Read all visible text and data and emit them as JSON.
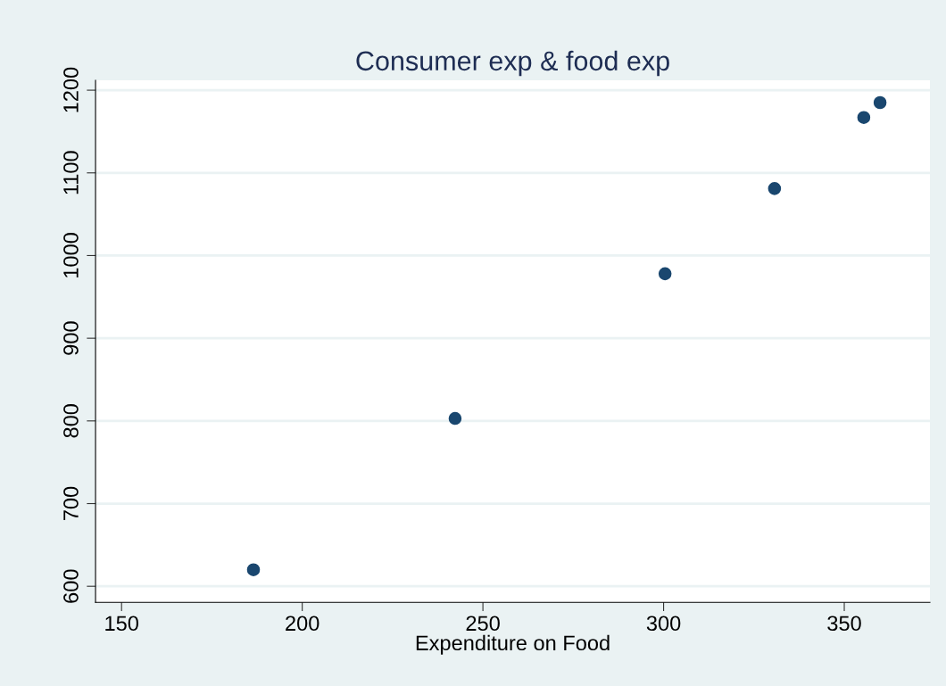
{
  "chart_data": {
    "type": "scatter",
    "title": "Consumer exp & food exp",
    "xlabel": "Expenditure on Food",
    "x": [
      186.5,
      242.3,
      300.4,
      330.7,
      355.4,
      359.9
    ],
    "series": [
      {
        "color": "#1a476f",
        "values": [
          620,
          803,
          978,
          1081,
          1167,
          1185
        ]
      }
    ],
    "xlim": [
      142.8,
      373.7
    ],
    "xticks": [
      150,
      200,
      250,
      300,
      350
    ],
    "ylim": [
      580.6,
      1212
    ],
    "yticks": [
      600,
      700,
      800,
      900,
      1000,
      1100,
      1200
    ],
    "grid": "y",
    "marker": "circle"
  }
}
